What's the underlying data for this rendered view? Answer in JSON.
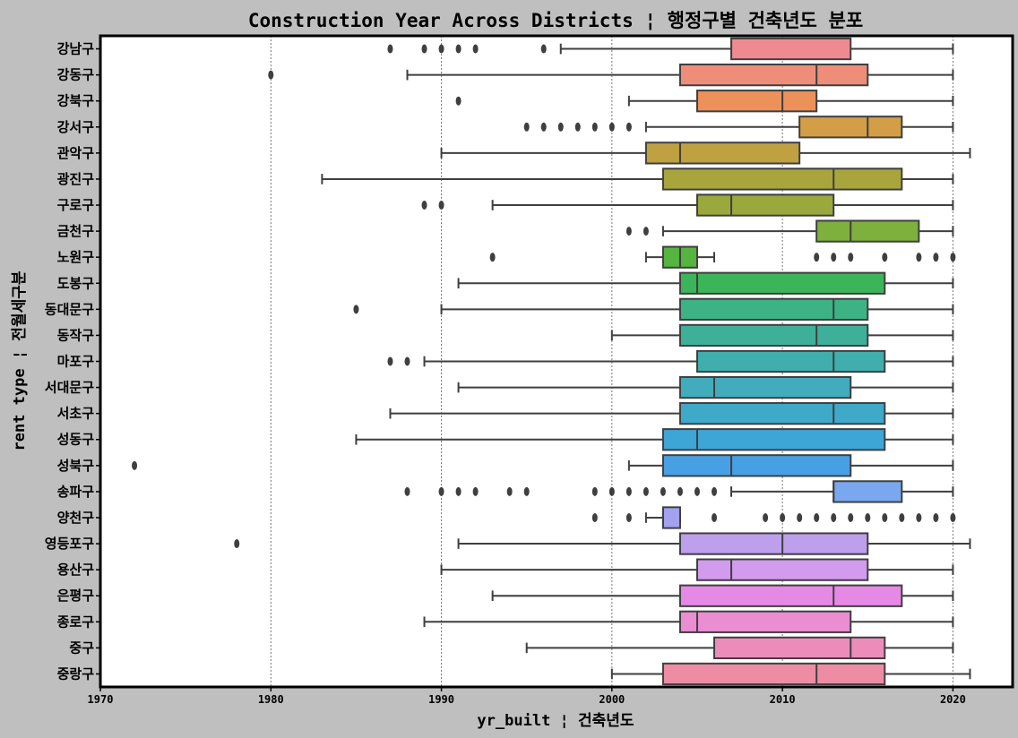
{
  "chart_data": {
    "type": "box",
    "orientation": "horizontal",
    "title": "Construction Year Across Districts  ¦ 행정구별 건축년도 분포",
    "xlabel": "yr_built ¦ 건축년도",
    "ylabel": "rent type ¦ 전월세구분",
    "xlim": [
      1970,
      2023.5
    ],
    "xticks": [
      1970,
      1980,
      1990,
      2000,
      2010,
      2020
    ],
    "grid": "vertical dotted lines at x ticks",
    "categories": [
      "강남구",
      "강동구",
      "강북구",
      "강서구",
      "관악구",
      "광진구",
      "구로구",
      "금천구",
      "노원구",
      "도봉구",
      "동대문구",
      "동작구",
      "마포구",
      "서대문구",
      "서초구",
      "성동구",
      "성북구",
      "송파구",
      "양천구",
      "영등포구",
      "용산구",
      "은평구",
      "종로구",
      "중구",
      "중랑구"
    ],
    "boxes": [
      {
        "whisker_low": 1997,
        "q1": 2007,
        "median": 2007,
        "q3": 2014,
        "whisker_high": 2020,
        "outliers": [
          1987,
          1989,
          1990,
          1991,
          1992,
          1996
        ]
      },
      {
        "whisker_low": 1988,
        "q1": 2004,
        "median": 2012,
        "q3": 2015,
        "whisker_high": 2020,
        "outliers": [
          1980
        ]
      },
      {
        "whisker_low": 2001,
        "q1": 2005,
        "median": 2010,
        "q3": 2012,
        "whisker_high": 2020,
        "outliers": [
          1991
        ]
      },
      {
        "whisker_low": 2002,
        "q1": 2011,
        "median": 2015,
        "q3": 2017,
        "whisker_high": 2020,
        "outliers": [
          1995,
          1996,
          1997,
          1998,
          1999,
          2000,
          2001
        ]
      },
      {
        "whisker_low": 1990,
        "q1": 2002,
        "median": 2004,
        "q3": 2011,
        "whisker_high": 2021,
        "outliers": []
      },
      {
        "whisker_low": 1983,
        "q1": 2003,
        "median": 2013,
        "q3": 2017,
        "whisker_high": 2020,
        "outliers": []
      },
      {
        "whisker_low": 1993,
        "q1": 2005,
        "median": 2007,
        "q3": 2013,
        "whisker_high": 2020,
        "outliers": [
          1989,
          1990
        ]
      },
      {
        "whisker_low": 2003,
        "q1": 2012,
        "median": 2014,
        "q3": 2018,
        "whisker_high": 2020,
        "outliers": [
          2001,
          2002
        ]
      },
      {
        "whisker_low": 2002,
        "q1": 2003,
        "median": 2004,
        "q3": 2005,
        "whisker_high": 2006,
        "outliers": [
          1993,
          2012,
          2013,
          2014,
          2016,
          2018,
          2019,
          2020
        ]
      },
      {
        "whisker_low": 1991,
        "q1": 2004,
        "median": 2005,
        "q3": 2016,
        "whisker_high": 2020,
        "outliers": []
      },
      {
        "whisker_low": 1990,
        "q1": 2004,
        "median": 2013,
        "q3": 2015,
        "whisker_high": 2020,
        "outliers": [
          1985
        ]
      },
      {
        "whisker_low": 2000,
        "q1": 2004,
        "median": 2012,
        "q3": 2015,
        "whisker_high": 2020,
        "outliers": []
      },
      {
        "whisker_low": 1989,
        "q1": 2005,
        "median": 2013,
        "q3": 2016,
        "whisker_high": 2020,
        "outliers": [
          1987,
          1988
        ]
      },
      {
        "whisker_low": 1991,
        "q1": 2004,
        "median": 2006,
        "q3": 2014,
        "whisker_high": 2020,
        "outliers": []
      },
      {
        "whisker_low": 1987,
        "q1": 2004,
        "median": 2013,
        "q3": 2016,
        "whisker_high": 2020,
        "outliers": []
      },
      {
        "whisker_low": 1985,
        "q1": 2003,
        "median": 2005,
        "q3": 2016,
        "whisker_high": 2020,
        "outliers": []
      },
      {
        "whisker_low": 2001,
        "q1": 2003,
        "median": 2007,
        "q3": 2014,
        "whisker_high": 2020,
        "outliers": [
          1972
        ]
      },
      {
        "whisker_low": 2007,
        "q1": 2013,
        "median": 2013,
        "q3": 2017,
        "whisker_high": 2020,
        "outliers": [
          1988,
          1990,
          1991,
          1992,
          1994,
          1995,
          1999,
          2000,
          2001,
          2002,
          2003,
          2004,
          2005,
          2006
        ]
      },
      {
        "whisker_low": 2002,
        "q1": 2003,
        "median": 2003,
        "q3": 2004,
        "whisker_high": 2004,
        "outliers": [
          1999,
          2001,
          2006,
          2009,
          2010,
          2011,
          2012,
          2013,
          2014,
          2015,
          2016,
          2017,
          2018,
          2019,
          2020
        ]
      },
      {
        "whisker_low": 1991,
        "q1": 2004,
        "median": 2010,
        "q3": 2015,
        "whisker_high": 2021,
        "outliers": [
          1978
        ]
      },
      {
        "whisker_low": 1990,
        "q1": 2005,
        "median": 2007,
        "q3": 2015,
        "whisker_high": 2020,
        "outliers": []
      },
      {
        "whisker_low": 1993,
        "q1": 2004,
        "median": 2013,
        "q3": 2017,
        "whisker_high": 2020,
        "outliers": []
      },
      {
        "whisker_low": 1989,
        "q1": 2004,
        "median": 2005,
        "q3": 2014,
        "whisker_high": 2020,
        "outliers": []
      },
      {
        "whisker_low": 1995,
        "q1": 2006,
        "median": 2014,
        "q3": 2016,
        "whisker_high": 2020,
        "outliers": []
      },
      {
        "whisker_low": 2000,
        "q1": 2003,
        "median": 2012,
        "q3": 2016,
        "whisker_high": 2021,
        "outliers": []
      }
    ],
    "colors": [
      "#f08a91",
      "#ee8e7a",
      "#ec9159",
      "#d39e46",
      "#c0a141",
      "#a8a53c",
      "#9ba83e",
      "#7eb03d",
      "#55b53f",
      "#3cb45a",
      "#3db285",
      "#3eb09a",
      "#3faead",
      "#41acbc",
      "#3fa9c9",
      "#3da6d6",
      "#47a0e4",
      "#7aa8ee",
      "#a4a2f0",
      "#bd9fee",
      "#d39bee",
      "#e689e5",
      "#ea8dd3",
      "#ec8cbb",
      "#ee8ca5"
    ]
  }
}
